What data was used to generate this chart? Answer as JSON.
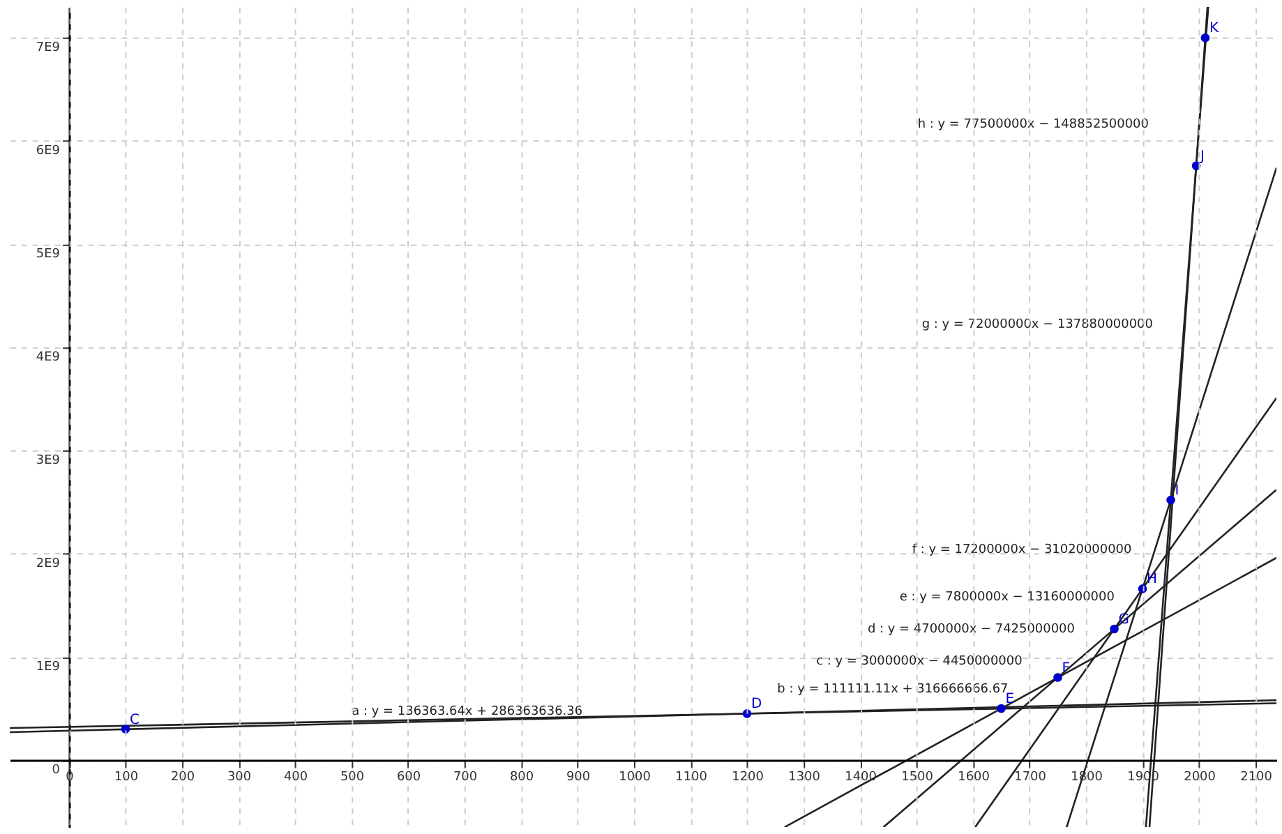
{
  "chart_data": {
    "type": "line",
    "xlim": [
      -105,
      2137
    ],
    "ylim": [
      -650000000,
      7300000000
    ],
    "xticks": [
      0,
      100,
      200,
      300,
      400,
      500,
      600,
      700,
      800,
      900,
      1000,
      1100,
      1200,
      1300,
      1400,
      1500,
      1600,
      1700,
      1800,
      1900,
      2000,
      2100
    ],
    "yticks": [
      0,
      {
        "value": 1000000000,
        "label": "1E9"
      },
      {
        "value": 2000000000,
        "label": "2E9"
      },
      {
        "value": 3000000000,
        "label": "3E9"
      },
      {
        "value": 4000000000,
        "label": "4E9"
      },
      {
        "value": 5000000000,
        "label": "5E9"
      },
      {
        "value": 6000000000,
        "label": "6E9"
      },
      {
        "value": 7000000000,
        "label": "7E9"
      }
    ],
    "grid": true,
    "line_style": "solid",
    "series": [
      {
        "color": "#222222",
        "x": [
          -105,
          2137
        ],
        "values": [
          270000000,
          580000000
        ]
      },
      {
        "color": "#222222",
        "x": [
          -105,
          2137
        ],
        "values": [
          310000000,
          550000000
        ]
      },
      {
        "color": "#222222",
        "x": [
          1266.67,
          2137
        ],
        "values": [
          -650000000,
          1960000000
        ]
      },
      {
        "color": "#222222",
        "x": [
          1441.49,
          2137
        ],
        "values": [
          -650000000,
          2620000000
        ]
      },
      {
        "color": "#222222",
        "x": [
          1603.85,
          2137
        ],
        "values": [
          -650000000,
          3510000000
        ]
      },
      {
        "color": "#222222",
        "x": [
          1765.7,
          2137
        ],
        "values": [
          -650000000,
          5740000000
        ]
      },
      {
        "color": "#222222",
        "x": [
          1905.97,
          2016.39
        ],
        "values": [
          -650000000,
          7300000000
        ]
      },
      {
        "color": "#222222",
        "x": [
          1912.29,
          2014.87
        ],
        "values": [
          -650000000,
          7300000000
        ]
      },
      {
        "type": "scatter",
        "color": "#0000cc",
        "marker": "circle",
        "x": [
          100,
          1200,
          1650,
          1750,
          1850,
          1900,
          1950,
          1995,
          2011
        ],
        "values": [
          300000000,
          450000000,
          500000000,
          800000000,
          1270000000,
          1660000000,
          2520000000,
          5760000000,
          7000000000
        ],
        "value_labels": [
          "C",
          "D",
          "E",
          "F",
          "G",
          "H",
          "I",
          "J",
          "K"
        ]
      }
    ],
    "annotations": [
      "a : y = 136363.64x + 286363636.36",
      "b : y = 111111.11x + 316666666.67",
      "c : y = 3000000x − 4450000000",
      "d : y = 4700000x − 7425000000",
      "e : y = 7800000x − 13160000000",
      "f : y = 17200000x − 31020000000",
      "g : y = 72000000x − 137880000000",
      "h : y = 77500000x − 148852500000"
    ]
  }
}
